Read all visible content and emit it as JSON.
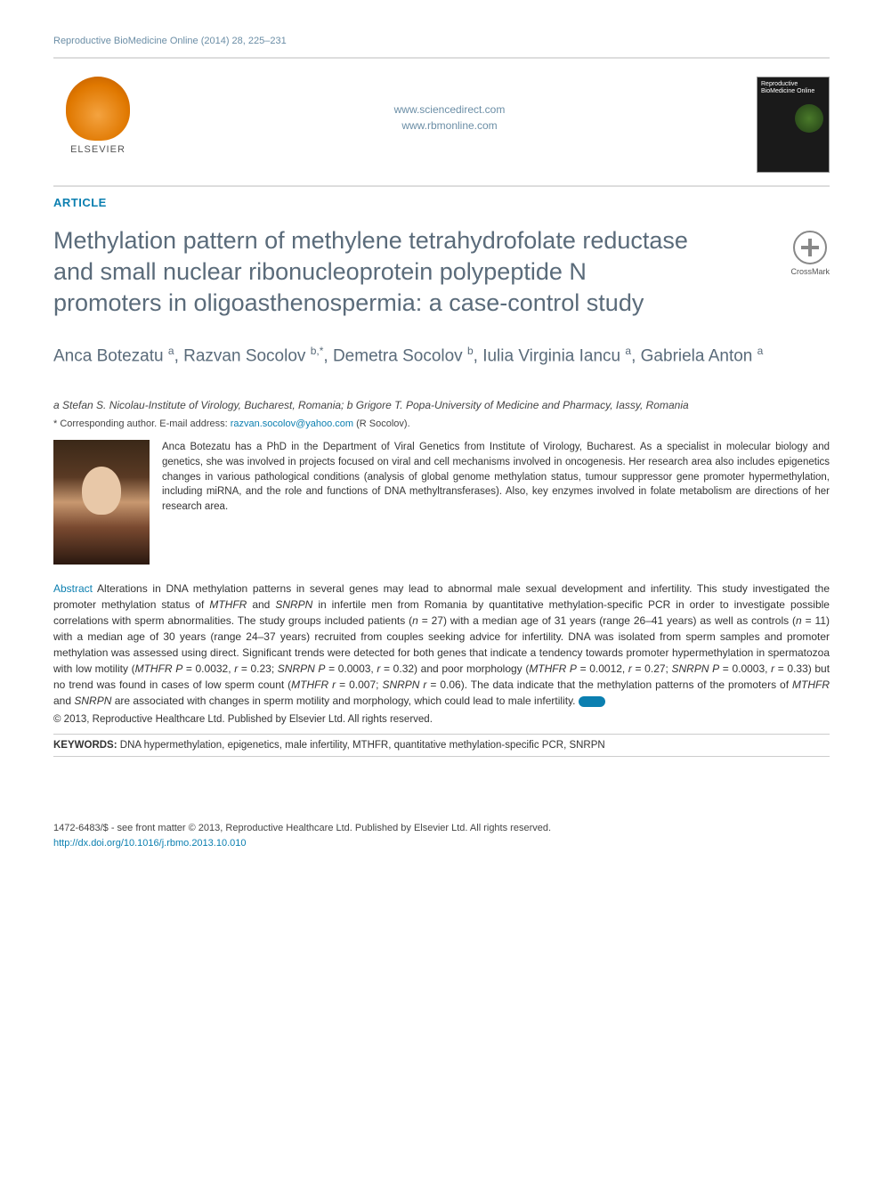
{
  "journal_header": "Reproductive BioMedicine Online (2014) 28, 225–231",
  "publisher": "ELSEVIER",
  "links": {
    "line1": "www.sciencedirect.com",
    "line2": "www.rbmonline.com"
  },
  "cover_title": "Reproductive BioMedicine Online",
  "section_label": "ARTICLE",
  "crossmark_label": "CrossMark",
  "title": "Methylation pattern of methylene tetrahydrofolate reductase and small nuclear ribonucleoprotein polypeptide N promoters in oligoasthenospermia: a case-control study",
  "authors_html": "Anca Botezatu <sup>a</sup>, Razvan Socolov <sup>b,*</sup>, Demetra Socolov <sup>b</sup>, Iulia Virginia Iancu <sup>a</sup>, Gabriela Anton <sup>a</sup>",
  "affiliations": "a Stefan S. Nicolau-Institute of Virology, Bucharest, Romania; b Grigore T. Popa-University of Medicine and Pharmacy, Iassy, Romania",
  "corresponding_prefix": "* Corresponding author.   E-mail address: ",
  "corresponding_email": "razvan.socolov@yahoo.com",
  "corresponding_suffix": " (R Socolov).",
  "bio": "Anca Botezatu has a PhD in the Department of Viral Genetics from Institute of Virology, Bucharest. As a specialist in molecular biology and genetics, she was involved in projects focused on viral and cell mechanisms involved in oncogenesis. Her research area also includes epigenetics changes in various pathological conditions (analysis of global genome methylation status, tumour suppressor gene promoter hypermethylation, including miRNA, and the role and functions of DNA methyltransferases). Also, key enzymes involved in folate metabolism are directions of her research area.",
  "abstract": {
    "label": "Abstract",
    "body_parts": [
      "   Alterations in DNA methylation patterns in several genes may lead to abnormal male sexual development and infertility. This study investigated the promoter methylation status of ",
      " and ",
      " in infertile men from Romania by quantitative methylation-specific PCR in order to investigate possible correlations with sperm abnormalities. The study groups included patients (",
      " = 27) with a median age of 31 years (range 26–41 years) as well as controls (",
      " = 11) with a median age of 30 years (range 24–37 years) recruited from couples seeking advice for infertility. DNA was isolated from sperm samples and promoter methylation was assessed using direct. Significant trends were detected for both genes that indicate a tendency towards promoter hypermethylation in spermatozoa with low motility (",
      " = 0.0032, ",
      " = 0.23; ",
      " = 0.0003, ",
      " = 0.32) and poor morphology (",
      " = 0.0012, ",
      " = 0.27; ",
      " = 0.0003, ",
      " = 0.33) but no trend was found in cases of low sperm count (",
      " = 0.007; ",
      " = 0.06). The data indicate that the methylation patterns of the promoters of ",
      " and ",
      " are associated with changes in sperm motility and morphology, which could lead to male infertility. "
    ],
    "italics": [
      "MTHFR",
      "SNRPN",
      "n",
      "n",
      "MTHFR P",
      "r",
      "SNRPN P",
      "r",
      "MTHFR P",
      "r",
      "SNRPN P",
      "r",
      "MTHFR r",
      "SNRPN r",
      "MTHFR",
      "SNRPN"
    ]
  },
  "copyright": "© 2013, Reproductive Healthcare Ltd. Published by Elsevier Ltd. All rights reserved.",
  "keywords_label": "KEYWORDS:",
  "keywords": " DNA hypermethylation, epigenetics, male infertility, MTHFR, quantitative methylation-specific PCR, SNRPN",
  "footer": {
    "line1": "1472-6483/$ - see front matter © 2013, Reproductive Healthcare Ltd. Published by Elsevier Ltd. All rights reserved.",
    "doi": "http://dx.doi.org/10.1016/j.rbmo.2013.10.010"
  },
  "colors": {
    "link_blue": "#0b7fb0",
    "header_gray": "#6b8ea6",
    "title_gray": "#5a6b7a",
    "text": "#333333",
    "divider": "#dddddd"
  }
}
